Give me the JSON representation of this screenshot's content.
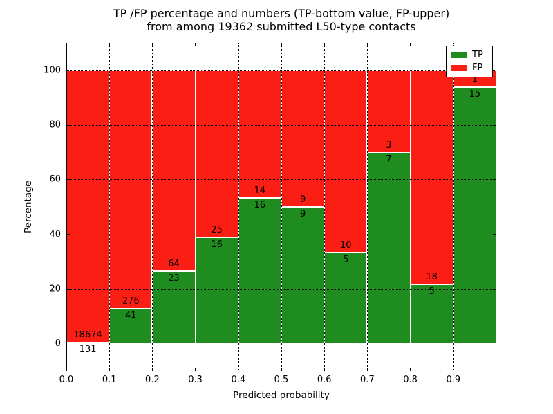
{
  "figure": {
    "title_line1": "TP /FP percentage and numbers (TP-bottom value, FP-upper)",
    "title_line2": "from among 19362 submitted L50-type contacts"
  },
  "chart_data": {
    "type": "bar",
    "stacked": true,
    "title": "TP /FP percentage and numbers (TP-bottom value, FP-upper) from among 19362 submitted L50-type contacts",
    "xlabel": "Predicted probability",
    "ylabel": "Percentage",
    "xlim": [
      0.0,
      1.0
    ],
    "ylim": [
      -10,
      110
    ],
    "x_ticks": [
      0.0,
      0.1,
      0.2,
      0.3,
      0.4,
      0.5,
      0.6,
      0.7,
      0.8,
      0.9
    ],
    "y_ticks": [
      0,
      20,
      40,
      60,
      80,
      100
    ],
    "grid": true,
    "grid_style": "dotted",
    "legend_position": "upper right",
    "bar_edge_color": "#ffffff",
    "series": [
      {
        "name": "TP",
        "color": "#1e8c1e"
      },
      {
        "name": "FP",
        "color": "#fa1e14"
      }
    ],
    "categories": [
      "0.0-0.1",
      "0.1-0.2",
      "0.2-0.3",
      "0.3-0.4",
      "0.4-0.5",
      "0.5-0.6",
      "0.6-0.7",
      "0.7-0.8",
      "0.8-0.9",
      "0.9-1.0"
    ],
    "bins": [
      {
        "x0": 0.0,
        "x1": 0.1,
        "tp": 131,
        "fp": 18674
      },
      {
        "x0": 0.1,
        "x1": 0.2,
        "tp": 41,
        "fp": 276
      },
      {
        "x0": 0.2,
        "x1": 0.3,
        "tp": 23,
        "fp": 64
      },
      {
        "x0": 0.3,
        "x1": 0.4,
        "tp": 16,
        "fp": 25
      },
      {
        "x0": 0.4,
        "x1": 0.5,
        "tp": 16,
        "fp": 14
      },
      {
        "x0": 0.5,
        "x1": 0.6,
        "tp": 9,
        "fp": 9
      },
      {
        "x0": 0.6,
        "x1": 0.7,
        "tp": 5,
        "fp": 10
      },
      {
        "x0": 0.7,
        "x1": 0.8,
        "tp": 7,
        "fp": 3
      },
      {
        "x0": 0.8,
        "x1": 0.9,
        "tp": 5,
        "fp": 18
      },
      {
        "x0": 0.9,
        "x1": 1.0,
        "tp": 15,
        "fp": 1
      }
    ]
  }
}
